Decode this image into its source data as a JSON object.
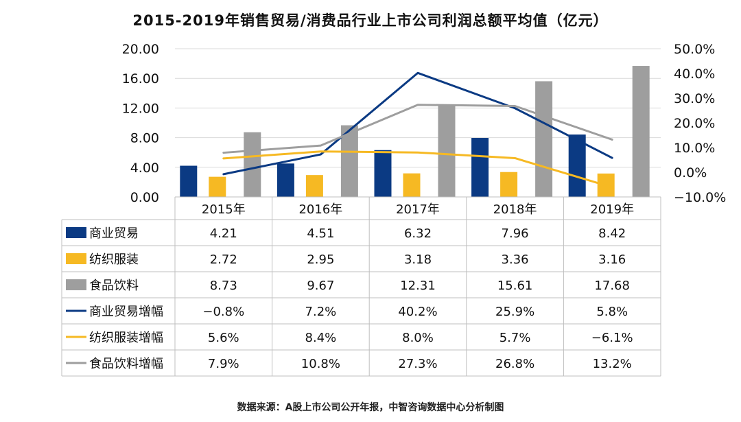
{
  "title": "2015-2019年销售贸易/消费品行业上市公司利润总额平均值（亿元）",
  "source": "数据来源：A股上市公司公开年报，中智咨询数据中心分析制图",
  "colors": {
    "navy": "#0b3a83",
    "gold": "#f6b923",
    "gray": "#9e9e9e",
    "grid": "#d9d9d9",
    "table_line": "#bfbfbf"
  },
  "chart_data": {
    "type": "bar",
    "categories": [
      "2015年",
      "2016年",
      "2017年",
      "2018年",
      "2019年"
    ],
    "series": [
      {
        "name": "商业贸易",
        "kind": "bar",
        "axis": "left",
        "color": "#0b3a83",
        "values": [
          4.21,
          4.51,
          6.32,
          7.96,
          8.42
        ],
        "labels": [
          "4.21",
          "4.51",
          "6.32",
          "7.96",
          "8.42"
        ]
      },
      {
        "name": "纺织服装",
        "kind": "bar",
        "axis": "left",
        "color": "#f6b923",
        "values": [
          2.72,
          2.95,
          3.18,
          3.36,
          3.16
        ],
        "labels": [
          "2.72",
          "2.95",
          "3.18",
          "3.36",
          "3.16"
        ]
      },
      {
        "name": "食品饮料",
        "kind": "bar",
        "axis": "left",
        "color": "#9e9e9e",
        "values": [
          8.73,
          9.67,
          12.31,
          15.61,
          17.68
        ],
        "labels": [
          "8.73",
          "9.67",
          "12.31",
          "15.61",
          "17.68"
        ]
      },
      {
        "name": "商业贸易增幅",
        "kind": "line",
        "axis": "right",
        "color": "#0b3a83",
        "values": [
          -0.8,
          7.2,
          40.2,
          25.9,
          5.8
        ],
        "labels": [
          "−0.8%",
          "7.2%",
          "40.2%",
          "25.9%",
          "5.8%"
        ]
      },
      {
        "name": "纺织服装增幅",
        "kind": "line",
        "axis": "right",
        "color": "#f6b923",
        "values": [
          5.6,
          8.4,
          8.0,
          5.7,
          -6.1
        ],
        "labels": [
          "5.6%",
          "8.4%",
          "8.0%",
          "5.7%",
          "−6.1%"
        ]
      },
      {
        "name": "食品饮料增幅",
        "kind": "line",
        "axis": "right",
        "color": "#9e9e9e",
        "values": [
          7.9,
          10.8,
          27.3,
          26.8,
          13.2
        ],
        "labels": [
          "7.9%",
          "10.8%",
          "27.3%",
          "26.8%",
          "13.2%"
        ]
      }
    ],
    "ylim_left": [
      0,
      20
    ],
    "ylim_right": [
      -10,
      50
    ],
    "left_ticks": [
      {
        "value": 0,
        "label": "0.00"
      },
      {
        "value": 4,
        "label": "4.00"
      },
      {
        "value": 8,
        "label": "8.00"
      },
      {
        "value": 12,
        "label": "12.00"
      },
      {
        "value": 16,
        "label": "16.00"
      },
      {
        "value": 20,
        "label": "20.00"
      }
    ],
    "right_ticks": [
      {
        "value": -10,
        "label": "−10.0%"
      },
      {
        "value": 0,
        "label": "0.0%"
      },
      {
        "value": 10,
        "label": "10.0%"
      },
      {
        "value": 20,
        "label": "20.0%"
      },
      {
        "value": 30,
        "label": "30.0%"
      },
      {
        "value": 40,
        "label": "40.0%"
      },
      {
        "value": 50,
        "label": "50.0%"
      }
    ],
    "grid": true,
    "legend": "data-table-below"
  }
}
